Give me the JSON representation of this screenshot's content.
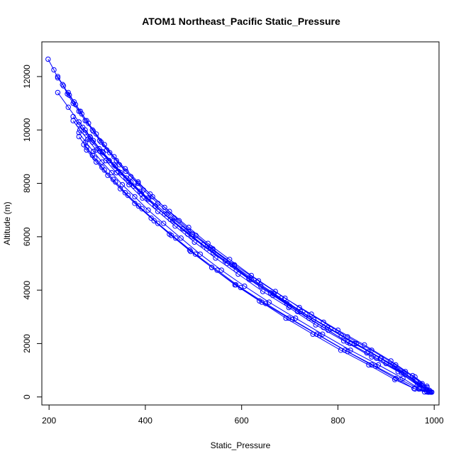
{
  "chart_data": {
    "type": "scatter",
    "title": "ATOM1 Northeast_Pacific Static_Pressure",
    "xlabel": "Static_Pressure",
    "ylabel": "Altitude (m)",
    "xlim": [
      185,
      1010
    ],
    "ylim": [
      -300,
      13300
    ],
    "x_ticks": [
      200,
      400,
      600,
      800,
      1000
    ],
    "y_ticks": [
      0,
      2000,
      4000,
      6000,
      8000,
      10000,
      12000
    ],
    "color": "#0000ff",
    "marker": "open-circle",
    "connected": true,
    "series": [
      {
        "x": [
          198,
          210,
          218,
          228,
          238,
          250,
          262,
          275,
          290,
          305,
          320,
          340,
          360,
          385,
          410,
          440,
          470,
          505,
          540,
          580,
          620,
          660,
          700,
          740,
          780,
          820,
          860,
          900,
          940,
          970,
          990,
          993
        ],
        "y": [
          12650,
          12250,
          11950,
          11700,
          11350,
          11000,
          10700,
          10350,
          10000,
          9600,
          9250,
          8850,
          8450,
          8000,
          7600,
          7100,
          6600,
          6050,
          5550,
          4950,
          4400,
          3900,
          3400,
          2950,
          2500,
          2050,
          1650,
          1250,
          850,
          500,
          250,
          180
        ]
      },
      {
        "x": [
          218,
          230,
          242,
          255,
          268,
          282,
          298,
          315,
          335,
          358,
          385,
          415,
          450,
          490,
          530,
          575,
          620,
          670,
          720,
          770,
          820,
          870,
          920,
          960,
          985,
          992
        ],
        "y": [
          12000,
          11650,
          11300,
          10950,
          10600,
          10250,
          9850,
          9450,
          9000,
          8550,
          8050,
          7500,
          6950,
          6350,
          5750,
          5150,
          4550,
          3950,
          3350,
          2800,
          2250,
          1750,
          1200,
          750,
          400,
          190
        ]
      },
      {
        "x": [
          240,
          252,
          265,
          278,
          292,
          308,
          326,
          346,
          370,
          396,
          426,
          460,
          498,
          540,
          585,
          632,
          682,
          733,
          785,
          838,
          890,
          940,
          975,
          992
        ],
        "y": [
          11400,
          11050,
          10700,
          10350,
          9950,
          9550,
          9150,
          8700,
          8250,
          7750,
          7250,
          6700,
          6100,
          5500,
          4900,
          4300,
          3700,
          3100,
          2550,
          2000,
          1450,
          950,
          500,
          200
        ]
      },
      {
        "x": [
          218,
          240,
          262,
          285,
          310,
          338,
          370,
          405,
          445,
          490,
          535,
          585,
          635,
          690,
          745,
          800,
          855,
          910,
          955,
          985,
          995
        ],
        "y": [
          11400,
          10850,
          10300,
          9750,
          9200,
          8650,
          8050,
          7450,
          6850,
          6200,
          5600,
          4950,
          4350,
          3700,
          3100,
          2500,
          1950,
          1350,
          800,
          350,
          180
        ]
      },
      {
        "x": [
          250,
          262,
          275,
          290,
          306,
          324,
          344,
          366,
          392,
          420,
          452,
          488,
          528,
          570,
          616,
          665,
          716,
          770,
          825,
          880,
          932,
          968,
          988
        ],
        "y": [
          10500,
          10200,
          9900,
          9550,
          9200,
          8850,
          8450,
          8050,
          7600,
          7150,
          6650,
          6100,
          5550,
          5000,
          4400,
          3800,
          3200,
          2600,
          2000,
          1450,
          900,
          450,
          200
        ]
      },
      {
        "x": [
          250,
          264,
          280,
          298,
          318,
          340,
          366,
          394,
          426,
          462,
          502,
          546,
          593,
          644,
          698,
          754,
          812,
          870,
          925,
          965,
          985
        ],
        "y": [
          10350,
          10000,
          9650,
          9250,
          8850,
          8400,
          7950,
          7450,
          6950,
          6400,
          5800,
          5200,
          4600,
          3950,
          3350,
          2700,
          2100,
          1500,
          950,
          450,
          200
        ]
      },
      {
        "x": [
          262,
          276,
          292,
          310,
          330,
          352,
          378,
          406,
          438,
          474,
          514,
          558,
          606,
          657,
          712,
          768,
          826,
          884,
          935,
          970,
          990
        ],
        "y": [
          9900,
          9550,
          9200,
          8800,
          8400,
          7950,
          7500,
          7000,
          6500,
          5950,
          5350,
          4750,
          4150,
          3550,
          2950,
          2350,
          1750,
          1200,
          700,
          300,
          190
        ]
      },
      {
        "x": [
          262,
          278,
          295,
          315,
          338,
          364,
          393,
          426,
          463,
          504,
          549,
          598,
          650,
          705,
          762,
          820,
          878,
          930,
          968,
          988
        ],
        "y": [
          9750,
          9350,
          8950,
          8500,
          8050,
          7550,
          7050,
          6500,
          5950,
          5350,
          4750,
          4100,
          3500,
          2900,
          2300,
          1700,
          1150,
          650,
          300,
          180
        ]
      },
      {
        "x": [
          272,
          290,
          310,
          333,
          358,
          386,
          418,
          454,
          494,
          538,
          586,
          637,
          692,
          748,
          806,
          864,
          918,
          960,
          985
        ],
        "y": [
          9450,
          9050,
          8600,
          8150,
          7650,
          7150,
          6600,
          6050,
          5450,
          4850,
          4200,
          3600,
          2950,
          2350,
          1750,
          1200,
          650,
          300,
          190
        ]
      },
      {
        "x": [
          278,
          298,
          322,
          348,
          378,
          412,
          450,
          492,
          538,
          588,
          642,
          698,
          756,
          814,
          870,
          920,
          958,
          980
        ],
        "y": [
          9250,
          8800,
          8300,
          7800,
          7250,
          6700,
          6100,
          5500,
          4850,
          4200,
          3550,
          2950,
          2350,
          1750,
          1200,
          700,
          320,
          190
        ]
      },
      {
        "x": [
          270,
          286,
          304,
          325,
          349,
          376,
          406,
          440,
          478,
          520,
          566,
          615,
          667,
          722,
          778,
          834,
          888,
          936,
          970,
          990
        ],
        "y": [
          10100,
          9700,
          9300,
          8850,
          8400,
          7900,
          7400,
          6850,
          6300,
          5700,
          5100,
          4450,
          3850,
          3200,
          2600,
          2000,
          1450,
          900,
          450,
          200
        ]
      },
      {
        "x": [
          275,
          292,
          312,
          335,
          360,
          389,
          421,
          457,
          497,
          541,
          589,
          640,
          694,
          750,
          807,
          864,
          918,
          962,
          988
        ],
        "y": [
          10000,
          9600,
          9150,
          8700,
          8200,
          7700,
          7150,
          6600,
          6000,
          5400,
          4750,
          4150,
          3500,
          2900,
          2300,
          1700,
          1150,
          600,
          220
        ]
      }
    ]
  }
}
